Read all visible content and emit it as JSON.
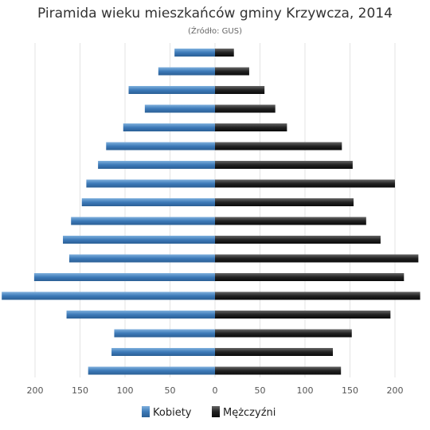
{
  "chart_data": {
    "type": "bar",
    "orientation": "horizontal-population-pyramid",
    "title": "Piramida wieku mieszkańców gminy Krzywcza, 2014",
    "subtitle": "(Źródło: GUS)",
    "x_ticks": [
      "200",
      "150",
      "100",
      "50",
      "0",
      "50",
      "100",
      "150",
      "200"
    ],
    "xlim": [
      -235,
      230
    ],
    "grid": true,
    "legend_position": "bottom",
    "series": [
      {
        "name": "Kobiety",
        "color": "#3c78b4",
        "values": [
          45,
          63,
          96,
          78,
          102,
          121,
          130,
          143,
          148,
          160,
          169,
          162,
          201,
          237,
          165,
          112,
          115,
          141
        ]
      },
      {
        "name": "Mężczyźni",
        "color": "#202020",
        "values": [
          21,
          38,
          55,
          67,
          80,
          141,
          153,
          200,
          154,
          168,
          184,
          226,
          210,
          228,
          195,
          152,
          131,
          140
        ]
      }
    ]
  }
}
